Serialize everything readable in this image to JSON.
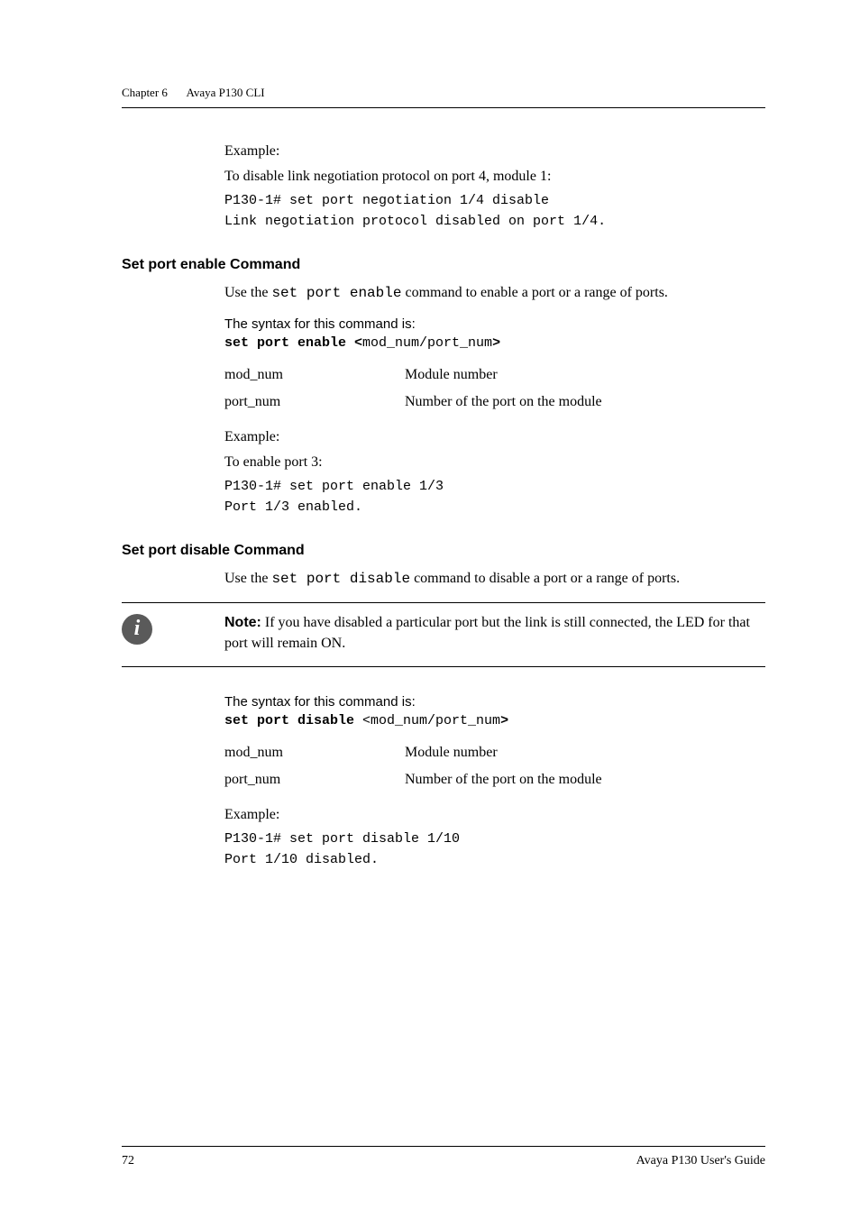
{
  "header": {
    "chapter_label": "Chapter 6",
    "chapter_title": "Avaya P130 CLI"
  },
  "intro_example": {
    "example_label": "Example:",
    "desc": "To disable link negotiation protocol on port 4, module 1:",
    "cmd": "P130-1# set port negotiation 1/4 disable",
    "output": "Link negotiation protocol disabled on port 1/4."
  },
  "set_port_enable": {
    "heading": "Set port enable Command",
    "desc_prefix": "Use the ",
    "desc_cmd": "set port enable",
    "desc_suffix": " command to enable a port or a range of ports.",
    "syntax_intro": "The syntax for this command is:",
    "cmd_bold_1": "set port enable <",
    "cmd_placeholder": "mod_num/port_num",
    "cmd_bold_2": ">",
    "params": {
      "mod_num_name": "mod_num",
      "mod_num_desc": "Module number",
      "port_num_name": "port_num",
      "port_num_desc": "Number of the port on the module"
    },
    "example_label": "Example:",
    "example_desc": "To enable port 3:",
    "example_cmd": "P130-1# set port enable 1/3",
    "example_output": "Port 1/3 enabled."
  },
  "set_port_disable": {
    "heading": "Set port disable Command",
    "desc_prefix": "Use the ",
    "desc_cmd": "set port disable",
    "desc_suffix": " command to disable a port or a range of ports.",
    "note_label": "Note:",
    "note_body": "  If you have disabled a particular port but the link is still connected, the LED for that port will remain ON.",
    "syntax_intro": "The syntax for this command is:",
    "cmd_bold_1": "set port disable ",
    "cmd_placeholder": "<mod_num/port_num",
    "cmd_bold_2": ">",
    "params": {
      "mod_num_name": "mod_num",
      "mod_num_desc": "Module number",
      "port_num_name": "port_num",
      "port_num_desc": "Number of the port on the module"
    },
    "example_label": "Example:",
    "example_cmd": "P130-1# set port disable 1/10",
    "example_output": "Port 1/10 disabled."
  },
  "footer": {
    "page_no": "72",
    "guide": "Avaya P130 User's Guide"
  },
  "colors": {
    "text": "#000000",
    "background": "#ffffff",
    "note_icon_bg": "#5a5a5a",
    "note_icon_fg": "#ffffff"
  },
  "fonts": {
    "body": "Georgia, 'Times New Roman', serif",
    "heading": "Arial, Helvetica, sans-serif",
    "code": "'Courier New', monospace",
    "body_size_pt": 12,
    "heading_size_pt": 12,
    "code_size_pt": 11
  }
}
